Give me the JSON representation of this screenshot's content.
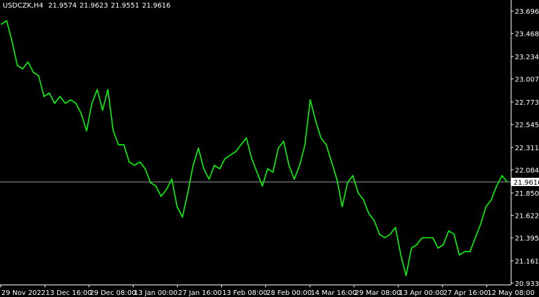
{
  "header": {
    "symbol_timeframe": "USDCZK,H4",
    "open": "21.9574",
    "high": "21.9623",
    "low": "21.9551",
    "close": "21.9616"
  },
  "chart_data": {
    "type": "line",
    "title": "USDCZK,H4",
    "ylim": [
      20.9335,
      23.696
    ],
    "y_ticks": [
      "23.6960",
      "23.4685",
      "23.2345",
      "23.0070",
      "22.7730",
      "22.5455",
      "22.3115",
      "22.0840",
      "21.8500",
      "21.6225",
      "21.3950",
      "21.1610",
      "20.9335"
    ],
    "x_ticks": [
      "29 Nov 2022",
      "13 Dec 16:00",
      "29 Dec 08:00",
      "13 Jan 00:00",
      "27 Jan 16:00",
      "13 Feb 08:00",
      "28 Feb 00:00",
      "14 Mar 16:00",
      "29 Mar 08:00",
      "13 Apr 00:00",
      "27 Apr 16:00",
      "12 May 08:00"
    ],
    "current_price": "21.9616",
    "colors": {
      "series": "#00ff00",
      "background": "#000000",
      "axis": "#ffffff",
      "price_line": "#a0a0a0"
    },
    "grid": false,
    "values": [
      23.563,
      23.598,
      23.388,
      23.144,
      23.109,
      23.179,
      23.074,
      23.039,
      22.829,
      22.864,
      22.759,
      22.829,
      22.759,
      22.794,
      22.759,
      22.654,
      22.479,
      22.759,
      22.899,
      22.689,
      22.899,
      22.479,
      22.339,
      22.339,
      22.165,
      22.13,
      22.165,
      22.095,
      21.955,
      21.92,
      21.815,
      21.885,
      21.99,
      21.71,
      21.605,
      21.85,
      22.13,
      22.304,
      22.095,
      21.99,
      22.13,
      22.095,
      22.199,
      22.234,
      22.269,
      22.339,
      22.409,
      22.199,
      22.06,
      21.92,
      22.095,
      22.06,
      22.304,
      22.374,
      22.13,
      21.99,
      22.13,
      22.339,
      22.794,
      22.584,
      22.409,
      22.339,
      22.165,
      21.99,
      21.71,
      21.955,
      22.025,
      21.85,
      21.78,
      21.64,
      21.57,
      21.43,
      21.395,
      21.43,
      21.5,
      21.22,
      21.011,
      21.29,
      21.325,
      21.395,
      21.395,
      21.395,
      21.29,
      21.325,
      21.465,
      21.43,
      21.22,
      21.255,
      21.255,
      21.395,
      21.535,
      21.71,
      21.78,
      21.92,
      22.025,
      21.9616
    ]
  }
}
